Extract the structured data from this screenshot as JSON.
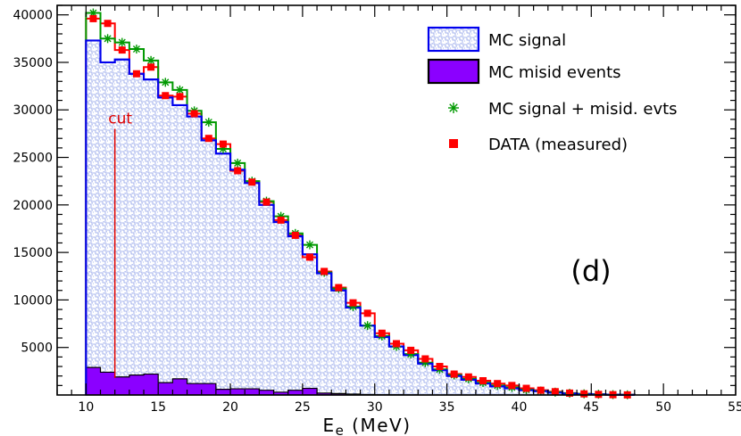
{
  "chart_data": {
    "type": "histogram",
    "xlabel": {
      "main": "E",
      "sub": "e",
      "unit": " (MeV)"
    },
    "xlim": [
      8,
      55
    ],
    "ylim": [
      0,
      41000
    ],
    "x_ticks": [
      10,
      15,
      20,
      25,
      30,
      35,
      40,
      45,
      50,
      55
    ],
    "y_ticks": [
      5000,
      10000,
      15000,
      20000,
      25000,
      30000,
      35000,
      40000
    ],
    "x_tick_labels": [
      "10",
      "15",
      "20",
      "25",
      "30",
      "35",
      "40",
      "45",
      "50",
      "55"
    ],
    "y_tick_labels": [
      "5000",
      "10000",
      "15000",
      "20000",
      "25000",
      "30000",
      "35000",
      "40000"
    ],
    "bin_edges": [
      10,
      11,
      12,
      13,
      14,
      15,
      16,
      17,
      18,
      19,
      20,
      21,
      22,
      23,
      24,
      25,
      26,
      27,
      28,
      29,
      30,
      31,
      32,
      33,
      34,
      35,
      36,
      37,
      38,
      39,
      40,
      41,
      42,
      43,
      44,
      45,
      46,
      47,
      48
    ],
    "panel_label": "(d)",
    "cut": {
      "label": "cut",
      "x": 12,
      "y_top": 28000,
      "color": "#dd0000"
    },
    "series": [
      {
        "name": "MC signal",
        "style": "hatched-step",
        "color": "#0000ee",
        "values": [
          37300,
          35000,
          35300,
          33800,
          33200,
          31300,
          30500,
          29300,
          26800,
          25400,
          23700,
          22300,
          20000,
          18200,
          16700,
          14800,
          12800,
          11000,
          9200,
          7300,
          6100,
          5100,
          4200,
          3300,
          2600,
          2000,
          1600,
          1200,
          900,
          700,
          500,
          400,
          250,
          150,
          100,
          60,
          30,
          10
        ]
      },
      {
        "name": "MC misid events",
        "style": "filled-step",
        "color": "#8b00ff",
        "values": [
          2900,
          2400,
          1900,
          2100,
          2200,
          1300,
          1700,
          1200,
          1200,
          600,
          650,
          650,
          500,
          300,
          500,
          700,
          200,
          150,
          100,
          50,
          30,
          20,
          10,
          5,
          0,
          0,
          0,
          0,
          0,
          0,
          0,
          0,
          0,
          0,
          0,
          0,
          0,
          0
        ]
      },
      {
        "name": "MC signal + misid. evts",
        "style": "step-with-stars",
        "color": "#009900",
        "values": [
          40200,
          37500,
          37100,
          36400,
          35200,
          32900,
          32100,
          29900,
          28700,
          25900,
          24400,
          22500,
          20400,
          18800,
          17000,
          15800,
          12900,
          11200,
          9300,
          7300,
          6200,
          5100,
          4300,
          3400,
          2700,
          2100,
          1700,
          1300,
          1000,
          800,
          550,
          420,
          300,
          180,
          120,
          80,
          40,
          20
        ]
      },
      {
        "name": "DATA (measured)",
        "style": "step-with-squares",
        "color": "#ff0000",
        "values": [
          39600,
          39100,
          36300,
          33800,
          34500,
          31500,
          31400,
          29600,
          27000,
          26400,
          23600,
          22400,
          20300,
          18400,
          16800,
          14500,
          13000,
          11300,
          9700,
          8600,
          6500,
          5400,
          4700,
          3800,
          3000,
          2200,
          1900,
          1500,
          1200,
          1000,
          700,
          500,
          350,
          200,
          120,
          60,
          30,
          10
        ]
      }
    ]
  }
}
